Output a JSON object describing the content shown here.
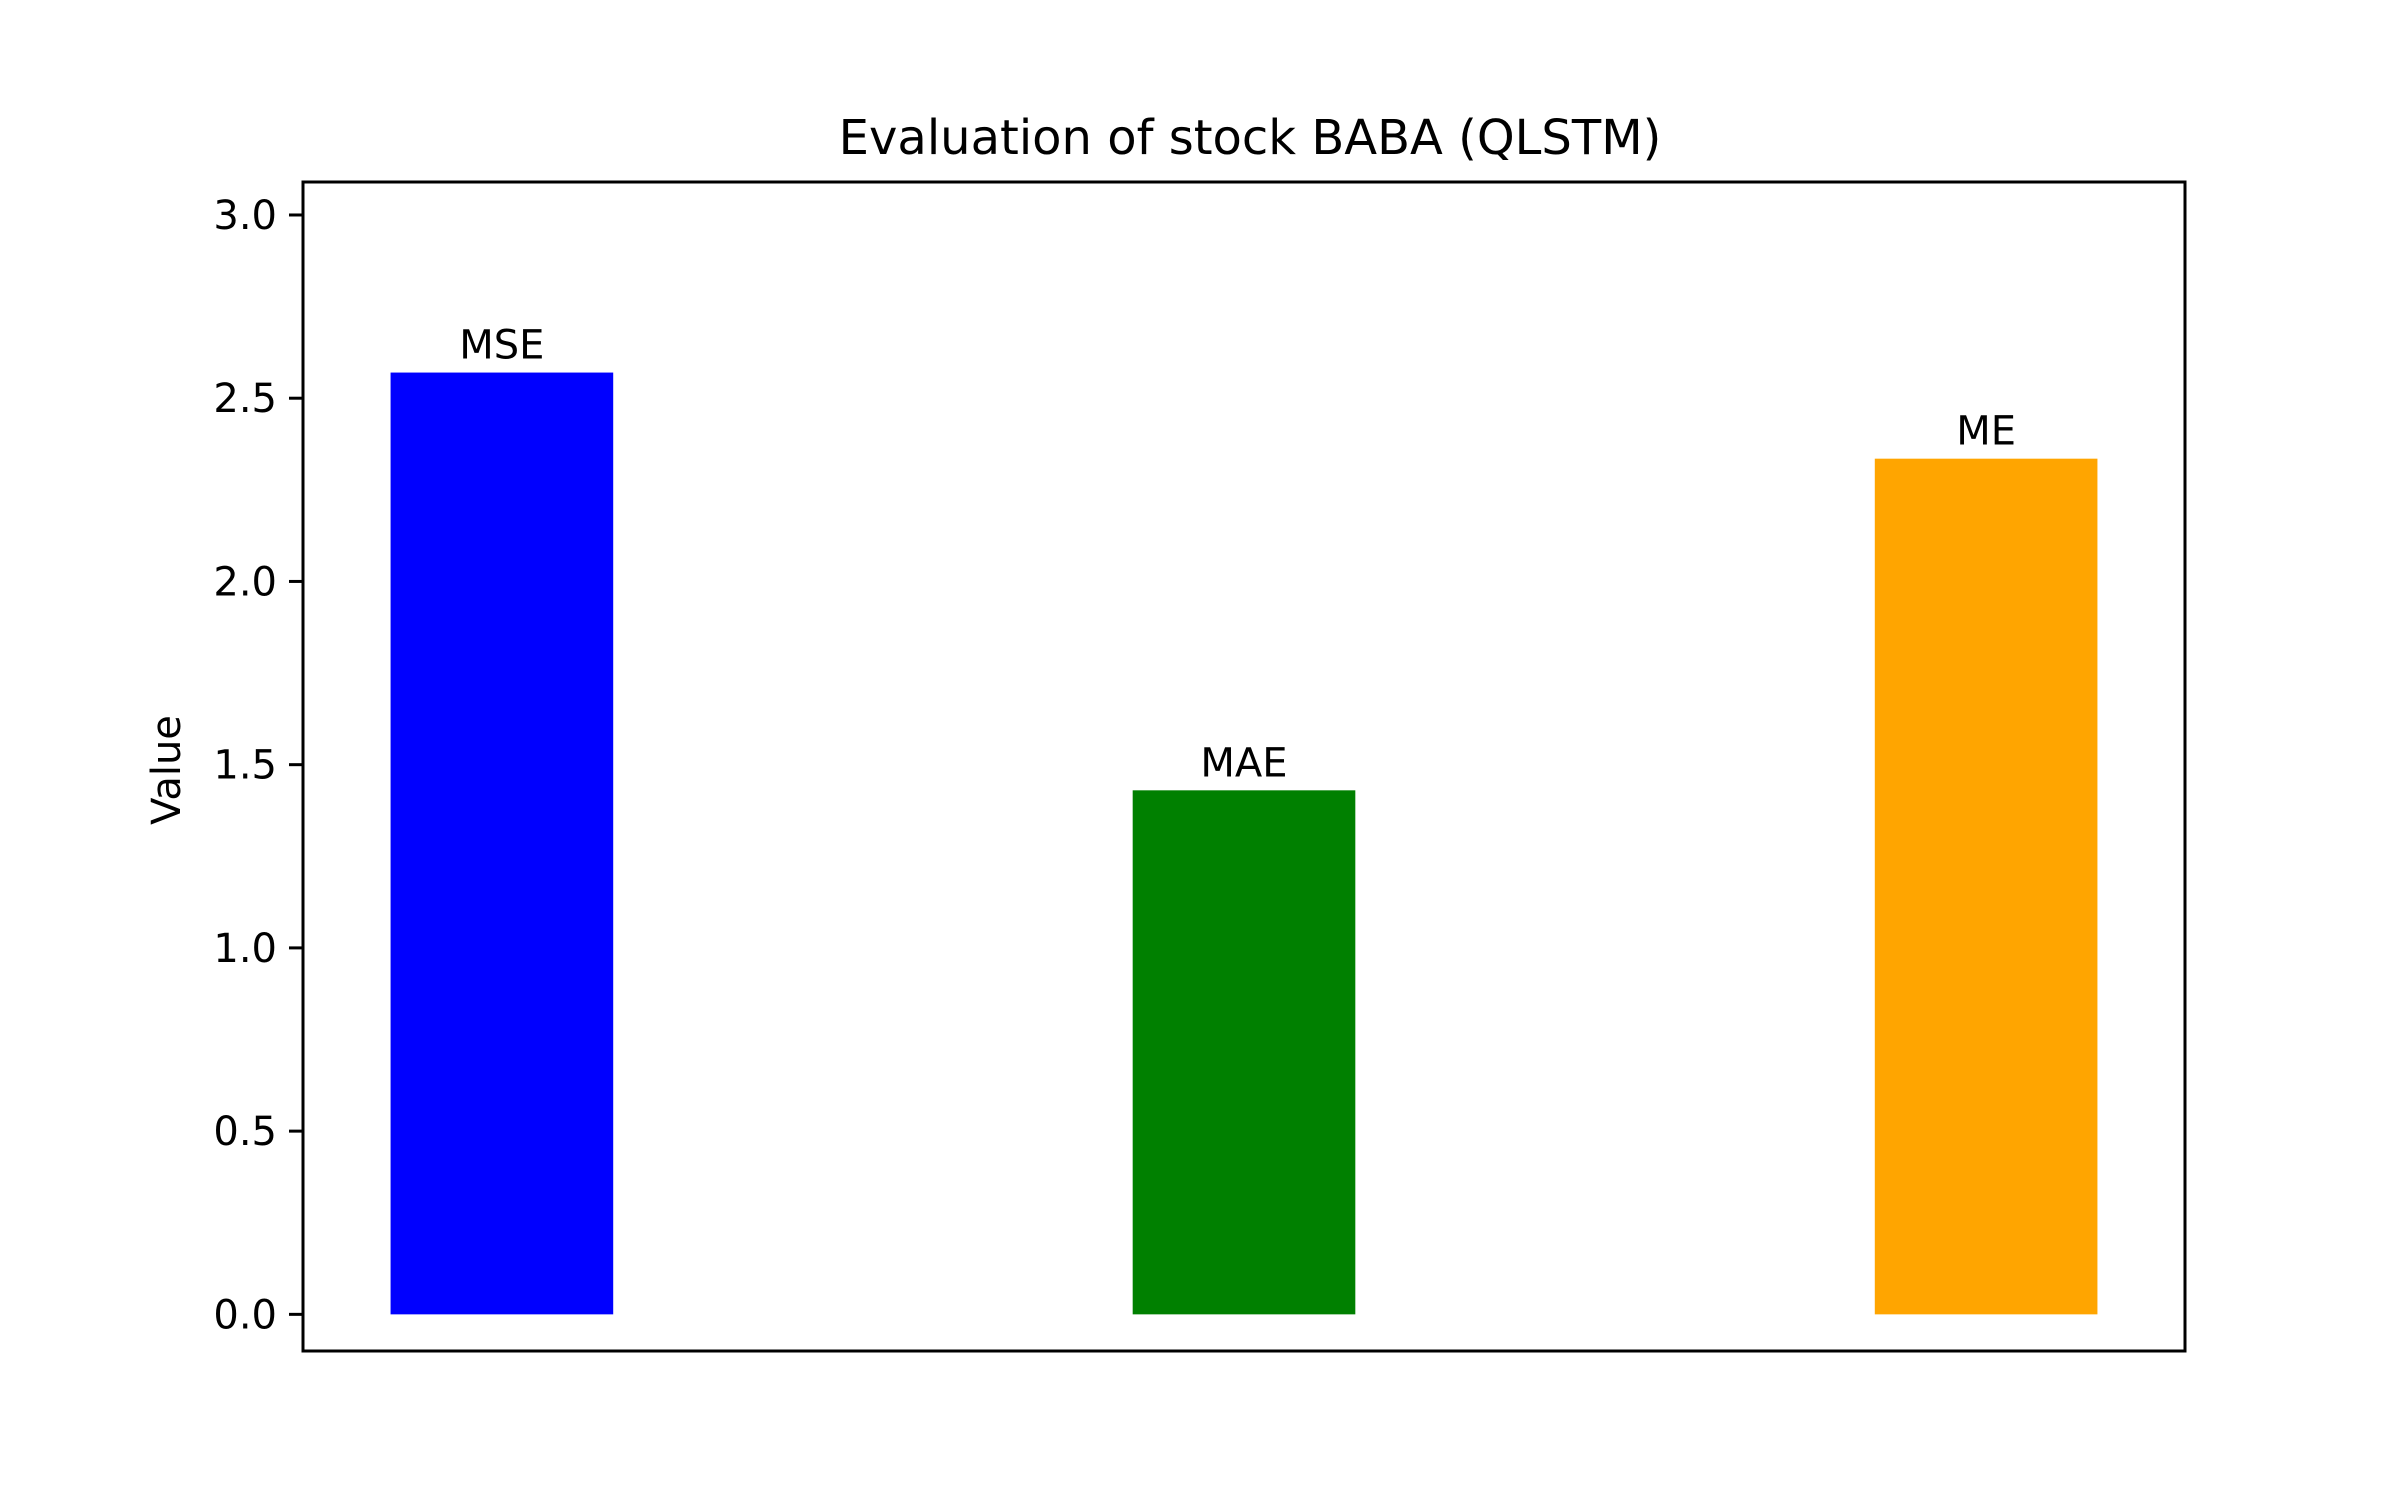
{
  "chart_data": {
    "type": "bar",
    "title": "Evaluation of stock BABA (QLSTM)",
    "xlabel": "",
    "ylabel": "Value",
    "categories": [
      "MSE",
      "MAE",
      "ME"
    ],
    "values": [
      2.57,
      1.43,
      2.335
    ],
    "colors": [
      "#0000ff",
      "#008000",
      "#ffa500"
    ],
    "ylim": [
      -0.1,
      3.09
    ],
    "yticks": [
      0.0,
      0.5,
      1.0,
      1.5,
      2.0,
      2.5,
      3.0
    ],
    "ytick_labels": [
      "0.0",
      "0.5",
      "1.0",
      "1.5",
      "2.0",
      "2.5",
      "3.0"
    ],
    "bar_labels": [
      "MSE",
      "MAE",
      "ME"
    ],
    "grid": false,
    "legend": "none"
  }
}
